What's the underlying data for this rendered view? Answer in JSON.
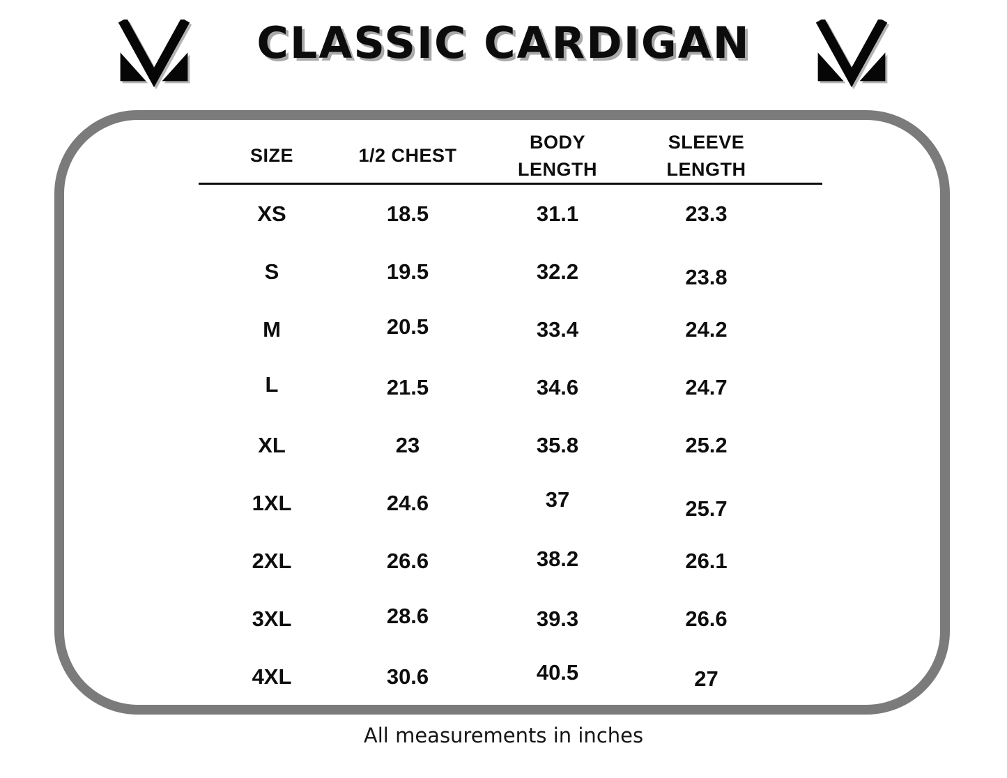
{
  "header": {
    "title": "CLASSIC CARDIGAN",
    "left_logo_icon": "m-monogram-logo",
    "right_logo_icon": "m-monogram-logo"
  },
  "table": {
    "columns": [
      {
        "id": "size",
        "label": "SIZE"
      },
      {
        "id": "half-chest",
        "label": "1/2 CHEST"
      },
      {
        "id": "body-length",
        "label": "BODY\nLENGTH"
      },
      {
        "id": "sleeve-length",
        "label": "SLEEVE\nLENGTH"
      }
    ],
    "rows": [
      {
        "size": "XS",
        "chest": "18.5",
        "body": "31.1",
        "sleeve": "23.3"
      },
      {
        "size": "S",
        "chest": "19.5",
        "body": "32.2",
        "sleeve": "23.8"
      },
      {
        "size": "M",
        "chest": "20.5",
        "body": "33.4",
        "sleeve": "24.2"
      },
      {
        "size": "L",
        "chest": "21.5",
        "body": "34.6",
        "sleeve": "24.7"
      },
      {
        "size": "XL",
        "chest": "23",
        "body": "35.8",
        "sleeve": "25.2"
      },
      {
        "size": "1XL",
        "chest": "24.6",
        "body": "37",
        "sleeve": "25.7"
      },
      {
        "size": "2XL",
        "chest": "26.6",
        "body": "38.2",
        "sleeve": "26.1"
      },
      {
        "size": "3XL",
        "chest": "28.6",
        "body": "39.3",
        "sleeve": "26.6"
      },
      {
        "size": "4XL",
        "chest": "30.6",
        "body": "40.5",
        "sleeve": "27"
      }
    ]
  },
  "footer": {
    "note": "All measurements in inches"
  },
  "colors": {
    "border_gray": "#7b7b7b",
    "text": "#0e0e0e",
    "title_shadow": "#a9a9a9"
  }
}
